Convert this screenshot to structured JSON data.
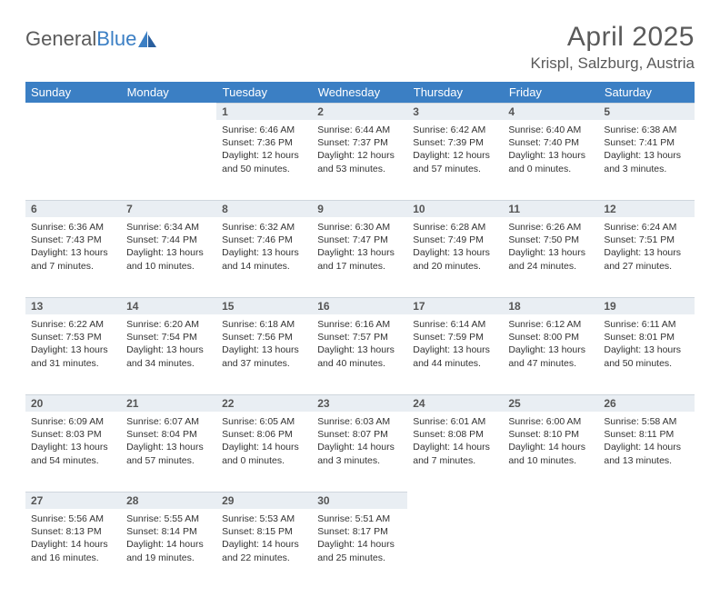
{
  "header": {
    "logo_general": "General",
    "logo_blue": "Blue",
    "month_title": "April 2025",
    "location": "Krispl, Salzburg, Austria"
  },
  "colors": {
    "header_bg": "#3b7fc4",
    "header_text": "#ffffff",
    "daynum_bg": "#e9eef3",
    "daynum_text": "#555555",
    "body_text": "#333333",
    "title_text": "#5a5a5a"
  },
  "weekdays": [
    "Sunday",
    "Monday",
    "Tuesday",
    "Wednesday",
    "Thursday",
    "Friday",
    "Saturday"
  ],
  "weeks": [
    [
      null,
      null,
      {
        "day": "1",
        "sunrise": "Sunrise: 6:46 AM",
        "sunset": "Sunset: 7:36 PM",
        "daylight": "Daylight: 12 hours and 50 minutes."
      },
      {
        "day": "2",
        "sunrise": "Sunrise: 6:44 AM",
        "sunset": "Sunset: 7:37 PM",
        "daylight": "Daylight: 12 hours and 53 minutes."
      },
      {
        "day": "3",
        "sunrise": "Sunrise: 6:42 AM",
        "sunset": "Sunset: 7:39 PM",
        "daylight": "Daylight: 12 hours and 57 minutes."
      },
      {
        "day": "4",
        "sunrise": "Sunrise: 6:40 AM",
        "sunset": "Sunset: 7:40 PM",
        "daylight": "Daylight: 13 hours and 0 minutes."
      },
      {
        "day": "5",
        "sunrise": "Sunrise: 6:38 AM",
        "sunset": "Sunset: 7:41 PM",
        "daylight": "Daylight: 13 hours and 3 minutes."
      }
    ],
    [
      {
        "day": "6",
        "sunrise": "Sunrise: 6:36 AM",
        "sunset": "Sunset: 7:43 PM",
        "daylight": "Daylight: 13 hours and 7 minutes."
      },
      {
        "day": "7",
        "sunrise": "Sunrise: 6:34 AM",
        "sunset": "Sunset: 7:44 PM",
        "daylight": "Daylight: 13 hours and 10 minutes."
      },
      {
        "day": "8",
        "sunrise": "Sunrise: 6:32 AM",
        "sunset": "Sunset: 7:46 PM",
        "daylight": "Daylight: 13 hours and 14 minutes."
      },
      {
        "day": "9",
        "sunrise": "Sunrise: 6:30 AM",
        "sunset": "Sunset: 7:47 PM",
        "daylight": "Daylight: 13 hours and 17 minutes."
      },
      {
        "day": "10",
        "sunrise": "Sunrise: 6:28 AM",
        "sunset": "Sunset: 7:49 PM",
        "daylight": "Daylight: 13 hours and 20 minutes."
      },
      {
        "day": "11",
        "sunrise": "Sunrise: 6:26 AM",
        "sunset": "Sunset: 7:50 PM",
        "daylight": "Daylight: 13 hours and 24 minutes."
      },
      {
        "day": "12",
        "sunrise": "Sunrise: 6:24 AM",
        "sunset": "Sunset: 7:51 PM",
        "daylight": "Daylight: 13 hours and 27 minutes."
      }
    ],
    [
      {
        "day": "13",
        "sunrise": "Sunrise: 6:22 AM",
        "sunset": "Sunset: 7:53 PM",
        "daylight": "Daylight: 13 hours and 31 minutes."
      },
      {
        "day": "14",
        "sunrise": "Sunrise: 6:20 AM",
        "sunset": "Sunset: 7:54 PM",
        "daylight": "Daylight: 13 hours and 34 minutes."
      },
      {
        "day": "15",
        "sunrise": "Sunrise: 6:18 AM",
        "sunset": "Sunset: 7:56 PM",
        "daylight": "Daylight: 13 hours and 37 minutes."
      },
      {
        "day": "16",
        "sunrise": "Sunrise: 6:16 AM",
        "sunset": "Sunset: 7:57 PM",
        "daylight": "Daylight: 13 hours and 40 minutes."
      },
      {
        "day": "17",
        "sunrise": "Sunrise: 6:14 AM",
        "sunset": "Sunset: 7:59 PM",
        "daylight": "Daylight: 13 hours and 44 minutes."
      },
      {
        "day": "18",
        "sunrise": "Sunrise: 6:12 AM",
        "sunset": "Sunset: 8:00 PM",
        "daylight": "Daylight: 13 hours and 47 minutes."
      },
      {
        "day": "19",
        "sunrise": "Sunrise: 6:11 AM",
        "sunset": "Sunset: 8:01 PM",
        "daylight": "Daylight: 13 hours and 50 minutes."
      }
    ],
    [
      {
        "day": "20",
        "sunrise": "Sunrise: 6:09 AM",
        "sunset": "Sunset: 8:03 PM",
        "daylight": "Daylight: 13 hours and 54 minutes."
      },
      {
        "day": "21",
        "sunrise": "Sunrise: 6:07 AM",
        "sunset": "Sunset: 8:04 PM",
        "daylight": "Daylight: 13 hours and 57 minutes."
      },
      {
        "day": "22",
        "sunrise": "Sunrise: 6:05 AM",
        "sunset": "Sunset: 8:06 PM",
        "daylight": "Daylight: 14 hours and 0 minutes."
      },
      {
        "day": "23",
        "sunrise": "Sunrise: 6:03 AM",
        "sunset": "Sunset: 8:07 PM",
        "daylight": "Daylight: 14 hours and 3 minutes."
      },
      {
        "day": "24",
        "sunrise": "Sunrise: 6:01 AM",
        "sunset": "Sunset: 8:08 PM",
        "daylight": "Daylight: 14 hours and 7 minutes."
      },
      {
        "day": "25",
        "sunrise": "Sunrise: 6:00 AM",
        "sunset": "Sunset: 8:10 PM",
        "daylight": "Daylight: 14 hours and 10 minutes."
      },
      {
        "day": "26",
        "sunrise": "Sunrise: 5:58 AM",
        "sunset": "Sunset: 8:11 PM",
        "daylight": "Daylight: 14 hours and 13 minutes."
      }
    ],
    [
      {
        "day": "27",
        "sunrise": "Sunrise: 5:56 AM",
        "sunset": "Sunset: 8:13 PM",
        "daylight": "Daylight: 14 hours and 16 minutes."
      },
      {
        "day": "28",
        "sunrise": "Sunrise: 5:55 AM",
        "sunset": "Sunset: 8:14 PM",
        "daylight": "Daylight: 14 hours and 19 minutes."
      },
      {
        "day": "29",
        "sunrise": "Sunrise: 5:53 AM",
        "sunset": "Sunset: 8:15 PM",
        "daylight": "Daylight: 14 hours and 22 minutes."
      },
      {
        "day": "30",
        "sunrise": "Sunrise: 5:51 AM",
        "sunset": "Sunset: 8:17 PM",
        "daylight": "Daylight: 14 hours and 25 minutes."
      },
      null,
      null,
      null
    ]
  ]
}
